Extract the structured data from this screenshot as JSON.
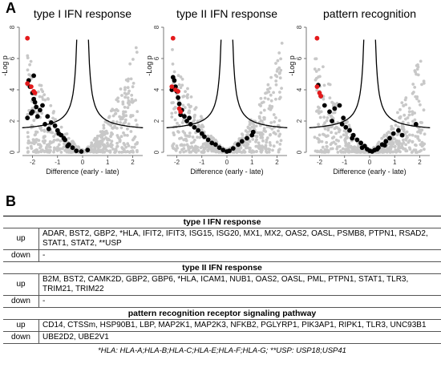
{
  "panels": {
    "a": "A",
    "b": "B"
  },
  "chart_data": [
    {
      "type": "scatter",
      "title": "type I IFN response",
      "xlabel": "Difference (early - late)",
      "ylabel": "-Log p",
      "xlim": [
        -2.4,
        2.4
      ],
      "ylim": [
        0,
        8
      ],
      "xticks": [
        "-2",
        "-1",
        "0",
        "1",
        "2"
      ],
      "yticks": [
        "0",
        "2",
        "4",
        "6",
        "8"
      ],
      "series": [
        {
          "color": "#000000",
          "x": [
            -2.15,
            -2.1,
            -2.0,
            -1.95,
            -1.9,
            -1.85,
            -2.05,
            -2.2,
            -1.7,
            -1.6,
            -1.4,
            -1.25,
            -1.1,
            -1.0,
            -0.85,
            -0.7,
            -0.55,
            -0.4,
            -0.25,
            -0.05,
            0.2,
            -1.95,
            -2.0,
            -1.8,
            -1.5,
            -1.35,
            -0.95,
            -0.75,
            -0.6
          ],
          "y": [
            4.6,
            4.2,
            3.8,
            3.4,
            3.2,
            2.9,
            2.5,
            2.2,
            2.7,
            3.0,
            2.3,
            1.9,
            1.7,
            1.4,
            1.1,
            0.8,
            0.5,
            0.3,
            0.1,
            0.05,
            0.15,
            4.9,
            2.6,
            2.3,
            1.8,
            1.5,
            1.2,
            0.9,
            0.4
          ]
        },
        {
          "color": "#e41a1c",
          "x": [
            -2.2,
            -2.2,
            -2.05,
            -1.95,
            -1.9
          ],
          "y": [
            7.3,
            4.4,
            4.2,
            3.9,
            3.8
          ]
        }
      ]
    },
    {
      "type": "scatter",
      "title": "type II IFN response",
      "xlabel": "Difference (early - late)",
      "ylabel": "-Log p",
      "xlim": [
        -2.4,
        2.4
      ],
      "ylim": [
        0,
        8
      ],
      "xticks": [
        "-2",
        "-1",
        "0",
        "1",
        "2"
      ],
      "yticks": [
        "0",
        "2",
        "4",
        "6",
        "8"
      ],
      "series": [
        {
          "color": "#000000",
          "x": [
            -2.15,
            -2.1,
            -2.05,
            -2.0,
            -1.95,
            -1.9,
            -1.8,
            -1.7,
            -1.6,
            -1.5,
            -1.45,
            -1.3,
            -1.15,
            -1.0,
            -0.9,
            -0.75,
            -0.6,
            -0.45,
            -0.3,
            -0.15,
            0.0,
            0.1,
            0.25,
            0.45,
            0.6,
            0.8,
            1.0,
            1.05,
            -2.2,
            -1.85
          ],
          "y": [
            4.8,
            4.6,
            4.2,
            3.9,
            3.5,
            3.1,
            2.7,
            2.3,
            2.0,
            2.2,
            1.8,
            1.6,
            1.4,
            1.2,
            1.0,
            0.8,
            0.6,
            0.5,
            0.3,
            0.15,
            0.05,
            0.1,
            0.25,
            0.5,
            0.7,
            0.9,
            1.1,
            1.3,
            4.0,
            2.4
          ]
        },
        {
          "color": "#e41a1c",
          "x": [
            -2.15,
            -2.2,
            -2.05,
            -1.95,
            -1.9,
            -1.85
          ],
          "y": [
            7.3,
            4.2,
            4.0,
            3.9,
            2.8,
            2.6
          ]
        }
      ]
    },
    {
      "type": "scatter",
      "title": "pattern recognition",
      "xlabel": "Difference (early - late)",
      "ylabel": "-Log p",
      "xlim": [
        -2.4,
        2.4
      ],
      "ylim": [
        0,
        8
      ],
      "xticks": [
        "-2",
        "-1",
        "0",
        "1",
        "2"
      ],
      "yticks": [
        "0",
        "2",
        "4",
        "6",
        "8"
      ],
      "series": [
        {
          "color": "#000000",
          "x": [
            -2.05,
            -1.95,
            -1.8,
            -1.6,
            -1.4,
            -1.2,
            -1.05,
            -0.95,
            -0.8,
            -0.65,
            -0.5,
            -0.35,
            -0.2,
            -0.1,
            0.0,
            0.1,
            0.2,
            0.35,
            0.5,
            0.65,
            0.8,
            0.95,
            1.15,
            1.3,
            1.85,
            -1.5,
            -1.1,
            -0.7,
            -0.3,
            0.3,
            0.6
          ],
          "y": [
            4.3,
            3.6,
            3.0,
            2.6,
            2.8,
            3.0,
            2.2,
            1.6,
            1.4,
            1.1,
            0.8,
            0.6,
            0.4,
            0.2,
            0.1,
            0.05,
            0.15,
            0.3,
            0.5,
            0.7,
            0.9,
            1.2,
            1.4,
            1.1,
            1.8,
            2.0,
            1.8,
            0.9,
            0.3,
            0.2,
            0.45
          ]
        },
        {
          "color": "#e41a1c",
          "x": [
            -2.1,
            -2.1,
            -2.0,
            -1.95
          ],
          "y": [
            7.3,
            4.2,
            3.8,
            3.6
          ]
        }
      ]
    }
  ],
  "table": {
    "sections": [
      {
        "title": "type I IFN response",
        "rows": [
          {
            "dir": "up",
            "genes": "ADAR, BST2, GBP2, *HLA, IFIT2, IFIT3, ISG15, ISG20, MX1, MX2, OAS2, OASL, PSMB8, PTPN1, RSAD2, STAT1, STAT2, **USP"
          },
          {
            "dir": "down",
            "genes": "-"
          }
        ]
      },
      {
        "title": "type II IFN response",
        "rows": [
          {
            "dir": "up",
            "genes": "B2M, BST2, CAMK2D, GBP2, GBP6, *HLA, ICAM1, NUB1, OAS2, OASL, PML, PTPN1, STAT1, TLR3, TRIM21, TRIM22"
          },
          {
            "dir": "down",
            "genes": "-"
          }
        ]
      },
      {
        "title": "pattern recognition receptor signaling pathway",
        "rows": [
          {
            "dir": "up",
            "genes": "CD14, CTSSm, HSP90B1, LBP, MAP2K1, MAP2K3, NFKB2, PGLYRP1, PIK3AP1, RIPK1, TLR3, UNC93B1"
          },
          {
            "dir": "down",
            "genes": "UBE2D2, UBE2V1"
          }
        ]
      }
    ],
    "footnote": "*HLA: HLA-A;HLA-B;HLA-C;HLA-E;HLA-F;HLA-G; **USP: USP18;USP41"
  }
}
